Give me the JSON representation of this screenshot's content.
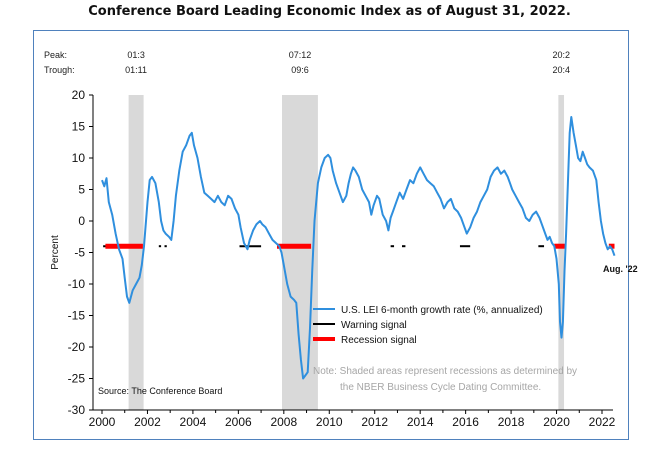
{
  "title": "Conference Board Leading Economic Index as of August 31, 2022.",
  "chart_data": {
    "type": "line",
    "title": "Conference Board Leading Economic Index as of August 31, 2022.",
    "xlabel": "",
    "ylabel": "Percent",
    "xlim": [
      2000,
      2022.75
    ],
    "ylim": [
      -30,
      20
    ],
    "x_ticks": [
      "2000",
      "2002",
      "2004",
      "2006",
      "2008",
      "2010",
      "2012",
      "2014",
      "2016",
      "2018",
      "2020",
      "2022"
    ],
    "y_ticks": [
      "20",
      "15",
      "10",
      "5",
      "0",
      "-5",
      "-10",
      "-15",
      "-20",
      "-25",
      "-30"
    ],
    "peak_label": "Peak:",
    "trough_label": "Trough:",
    "recessions": [
      {
        "peak": "01:3",
        "trough": "01:11",
        "start": 2001.17,
        "end": 2001.83
      },
      {
        "peak": "07:12",
        "trough": "09:6",
        "start": 2007.92,
        "end": 2009.5
      },
      {
        "peak": "20:2",
        "trough": "20:4",
        "start": 2020.08,
        "end": 2020.33
      }
    ],
    "series": [
      {
        "name": "U.S. LEI 6-month growth rate (%, annualized)",
        "color": "#2f8fde",
        "points": [
          [
            2000.0,
            6.5
          ],
          [
            2000.1,
            5.5
          ],
          [
            2000.2,
            6.8
          ],
          [
            2000.3,
            3
          ],
          [
            2000.45,
            1
          ],
          [
            2000.6,
            -2
          ],
          [
            2000.75,
            -4.5
          ],
          [
            2000.9,
            -6
          ],
          [
            2001.0,
            -9
          ],
          [
            2001.1,
            -12
          ],
          [
            2001.2,
            -13
          ],
          [
            2001.35,
            -11
          ],
          [
            2001.5,
            -10
          ],
          [
            2001.65,
            -9
          ],
          [
            2001.75,
            -7
          ],
          [
            2001.85,
            -4
          ],
          [
            2002.0,
            3
          ],
          [
            2002.1,
            6.5
          ],
          [
            2002.2,
            7
          ],
          [
            2002.35,
            6
          ],
          [
            2002.5,
            3
          ],
          [
            2002.6,
            0
          ],
          [
            2002.7,
            -1.5
          ],
          [
            2002.8,
            -2
          ],
          [
            2002.95,
            -2.5
          ],
          [
            2003.05,
            -3
          ],
          [
            2003.15,
            0
          ],
          [
            2003.25,
            4
          ],
          [
            2003.4,
            8
          ],
          [
            2003.55,
            11
          ],
          [
            2003.7,
            12
          ],
          [
            2003.85,
            13.5
          ],
          [
            2003.95,
            14
          ],
          [
            2004.05,
            12
          ],
          [
            2004.2,
            10
          ],
          [
            2004.35,
            7
          ],
          [
            2004.5,
            4.5
          ],
          [
            2004.65,
            4
          ],
          [
            2004.8,
            3.5
          ],
          [
            2004.95,
            3
          ],
          [
            2005.1,
            4
          ],
          [
            2005.25,
            3
          ],
          [
            2005.4,
            2.5
          ],
          [
            2005.55,
            4
          ],
          [
            2005.7,
            3.5
          ],
          [
            2005.85,
            2
          ],
          [
            2006.0,
            1
          ],
          [
            2006.1,
            -1
          ],
          [
            2006.25,
            -3.5
          ],
          [
            2006.4,
            -4.5
          ],
          [
            2006.5,
            -3
          ],
          [
            2006.65,
            -1.5
          ],
          [
            2006.8,
            -0.5
          ],
          [
            2006.95,
            0
          ],
          [
            2007.05,
            -0.5
          ],
          [
            2007.2,
            -1
          ],
          [
            2007.35,
            -2
          ],
          [
            2007.5,
            -3
          ],
          [
            2007.65,
            -3.5
          ],
          [
            2007.8,
            -4
          ],
          [
            2007.9,
            -5
          ],
          [
            2008.0,
            -7
          ],
          [
            2008.15,
            -10
          ],
          [
            2008.3,
            -12
          ],
          [
            2008.45,
            -12.5
          ],
          [
            2008.55,
            -13
          ],
          [
            2008.65,
            -18
          ],
          [
            2008.75,
            -22
          ],
          [
            2008.85,
            -25
          ],
          [
            2008.95,
            -24.5
          ],
          [
            2009.05,
            -24
          ],
          [
            2009.15,
            -17
          ],
          [
            2009.25,
            -8
          ],
          [
            2009.35,
            0
          ],
          [
            2009.5,
            6
          ],
          [
            2009.65,
            8.5
          ],
          [
            2009.8,
            10
          ],
          [
            2009.95,
            10.5
          ],
          [
            2010.05,
            10
          ],
          [
            2010.15,
            8
          ],
          [
            2010.3,
            6
          ],
          [
            2010.45,
            4.5
          ],
          [
            2010.6,
            3
          ],
          [
            2010.75,
            4
          ],
          [
            2010.85,
            6
          ],
          [
            2010.95,
            7.5
          ],
          [
            2011.05,
            8.5
          ],
          [
            2011.15,
            8
          ],
          [
            2011.3,
            7
          ],
          [
            2011.45,
            5
          ],
          [
            2011.6,
            4
          ],
          [
            2011.75,
            3
          ],
          [
            2011.85,
            1
          ],
          [
            2011.95,
            2.5
          ],
          [
            2012.1,
            4
          ],
          [
            2012.2,
            3.5
          ],
          [
            2012.35,
            1
          ],
          [
            2012.5,
            0
          ],
          [
            2012.6,
            -1.5
          ],
          [
            2012.7,
            0.5
          ],
          [
            2012.8,
            1.5
          ],
          [
            2012.95,
            3
          ],
          [
            2013.1,
            4.5
          ],
          [
            2013.25,
            3.5
          ],
          [
            2013.4,
            5
          ],
          [
            2013.55,
            6.5
          ],
          [
            2013.7,
            6
          ],
          [
            2013.85,
            7.5
          ],
          [
            2014.0,
            8.5
          ],
          [
            2014.15,
            7.5
          ],
          [
            2014.3,
            6.5
          ],
          [
            2014.45,
            6
          ],
          [
            2014.6,
            5.5
          ],
          [
            2014.75,
            4.5
          ],
          [
            2014.9,
            3.5
          ],
          [
            2015.05,
            2
          ],
          [
            2015.2,
            3
          ],
          [
            2015.35,
            3.5
          ],
          [
            2015.5,
            2
          ],
          [
            2015.65,
            1.5
          ],
          [
            2015.8,
            0.5
          ],
          [
            2015.95,
            -1
          ],
          [
            2016.05,
            -2
          ],
          [
            2016.2,
            -1
          ],
          [
            2016.35,
            0.5
          ],
          [
            2016.5,
            1.5
          ],
          [
            2016.65,
            3
          ],
          [
            2016.8,
            4
          ],
          [
            2016.95,
            5
          ],
          [
            2017.1,
            7
          ],
          [
            2017.25,
            8
          ],
          [
            2017.4,
            8.5
          ],
          [
            2017.55,
            7.5
          ],
          [
            2017.7,
            8
          ],
          [
            2017.85,
            7
          ],
          [
            2017.95,
            6
          ],
          [
            2018.05,
            5
          ],
          [
            2018.2,
            4
          ],
          [
            2018.35,
            3
          ],
          [
            2018.5,
            2
          ],
          [
            2018.65,
            0.5
          ],
          [
            2018.8,
            0
          ],
          [
            2018.95,
            1
          ],
          [
            2019.1,
            1.5
          ],
          [
            2019.25,
            0.5
          ],
          [
            2019.35,
            -0.5
          ],
          [
            2019.5,
            -2
          ],
          [
            2019.6,
            -3
          ],
          [
            2019.7,
            -2.5
          ],
          [
            2019.8,
            -3.5
          ],
          [
            2019.9,
            -4
          ],
          [
            2020.0,
            -6
          ],
          [
            2020.1,
            -10
          ],
          [
            2020.15,
            -16
          ],
          [
            2020.22,
            -18.5
          ],
          [
            2020.28,
            -16
          ],
          [
            2020.35,
            -8
          ],
          [
            2020.42,
            -2
          ],
          [
            2020.5,
            6
          ],
          [
            2020.58,
            14
          ],
          [
            2020.65,
            16.5
          ],
          [
            2020.75,
            14
          ],
          [
            2020.85,
            12
          ],
          [
            2020.95,
            10
          ],
          [
            2021.05,
            9.5
          ],
          [
            2021.15,
            11
          ],
          [
            2021.25,
            10
          ],
          [
            2021.35,
            9
          ],
          [
            2021.45,
            8.5
          ],
          [
            2021.6,
            8
          ],
          [
            2021.75,
            6.5
          ],
          [
            2021.85,
            3
          ],
          [
            2021.95,
            0
          ],
          [
            2022.05,
            -2
          ],
          [
            2022.15,
            -3.5
          ],
          [
            2022.25,
            -4.5
          ],
          [
            2022.35,
            -4
          ],
          [
            2022.45,
            -4.5
          ],
          [
            2022.55,
            -5.5
          ]
        ]
      },
      {
        "name": "Warning signal",
        "color": "#000000",
        "marker_y": -4,
        "segments": [
          [
            2000.05,
            2000.95
          ],
          [
            2002.5,
            2002.6
          ],
          [
            2002.75,
            2002.85
          ],
          [
            2006.05,
            2007.0
          ],
          [
            2012.7,
            2012.85
          ],
          [
            2013.2,
            2013.35
          ],
          [
            2015.75,
            2016.2
          ],
          [
            2019.2,
            2019.45
          ]
        ]
      },
      {
        "name": "Recession signal",
        "color": "#ff0000",
        "marker_y": -4,
        "segments": [
          [
            2000.15,
            2001.8
          ],
          [
            2007.7,
            2009.2
          ],
          [
            2019.9,
            2020.4
          ],
          [
            2022.3,
            2022.55
          ]
        ]
      }
    ],
    "annotations": {
      "end_label": "Aug. '22",
      "source": "Source: The Conference Board",
      "note_line1": "Note: Shaded areas represent recessions as determined by",
      "note_line2": "the NBER Business Cycle Dating Committee."
    },
    "legend_position": "lower-right"
  }
}
